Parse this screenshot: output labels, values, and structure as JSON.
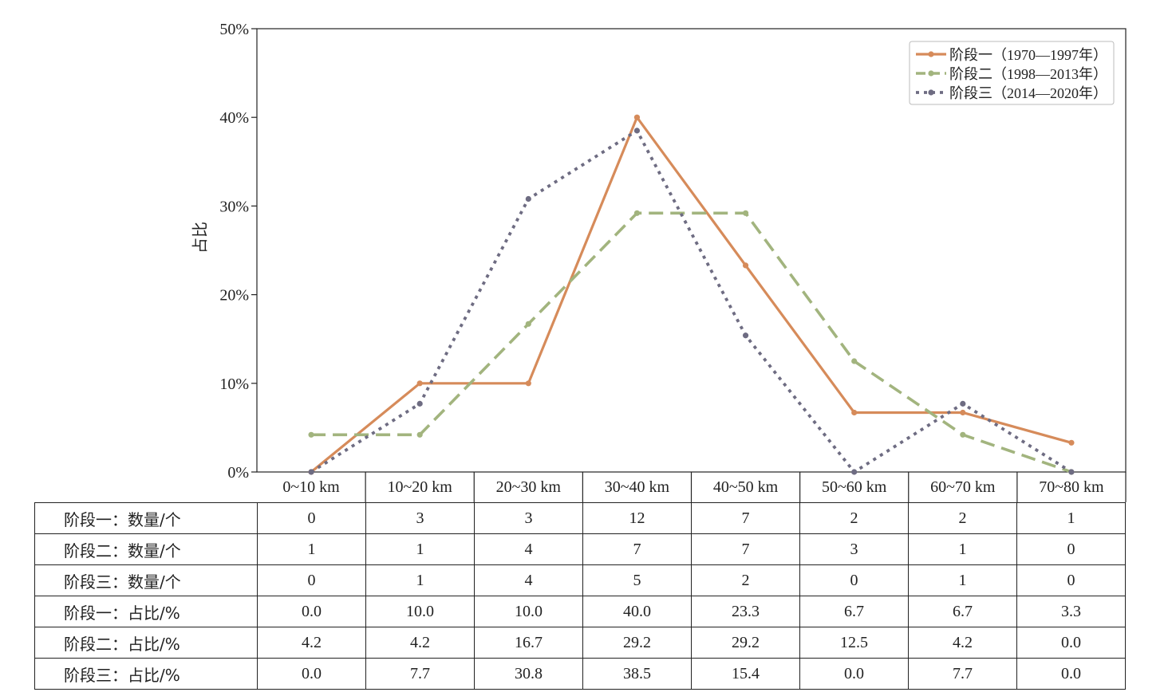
{
  "chart_data": {
    "type": "line",
    "title": "",
    "xlabel": "",
    "ylabel": "占比",
    "ylim": [
      0,
      50
    ],
    "yticks": [
      "0%",
      "10%",
      "20%",
      "30%",
      "40%",
      "50%"
    ],
    "categories": [
      "0~10 km",
      "10~20 km",
      "20~30 km",
      "30~40 km",
      "40~50 km",
      "50~60 km",
      "60~70 km",
      "70~80 km"
    ],
    "legend_position": "top-right",
    "series": [
      {
        "name": "阶段一（1970—1997年）",
        "legend_prefix": "阶段一（",
        "legend_years": "1970—1997年",
        "legend_suffix": "）",
        "color": "#D68B5A",
        "style": "solid",
        "values": [
          0.0,
          10.0,
          10.0,
          40.0,
          23.3,
          6.7,
          6.7,
          3.3
        ]
      },
      {
        "name": "阶段二（1998—2013年）",
        "legend_prefix": "阶段二（",
        "legend_years": "1998—2013年",
        "legend_suffix": "）",
        "color": "#A2B47E",
        "style": "dashed",
        "values": [
          4.2,
          4.2,
          16.7,
          29.2,
          29.2,
          12.5,
          4.2,
          0.0
        ]
      },
      {
        "name": "阶段三（2014—2020年）",
        "legend_prefix": "阶段三（",
        "legend_years": "2014—2020年",
        "legend_suffix": "）",
        "color": "#6E6C82",
        "style": "dotted",
        "values": [
          0.0,
          7.7,
          30.8,
          38.5,
          15.4,
          0.0,
          7.7,
          0.0
        ]
      }
    ]
  },
  "table": {
    "rows": [
      {
        "label": "阶段一：数量/个",
        "cells": [
          "0",
          "3",
          "3",
          "12",
          "7",
          "2",
          "2",
          "1"
        ]
      },
      {
        "label": "阶段二：数量/个",
        "cells": [
          "1",
          "1",
          "4",
          "7",
          "7",
          "3",
          "1",
          "0"
        ]
      },
      {
        "label": "阶段三：数量/个",
        "cells": [
          "0",
          "1",
          "4",
          "5",
          "2",
          "0",
          "1",
          "0"
        ]
      },
      {
        "label": "阶段一：占比/%",
        "cells": [
          "0.0",
          "10.0",
          "10.0",
          "40.0",
          "23.3",
          "6.7",
          "6.7",
          "3.3"
        ]
      },
      {
        "label": "阶段二：占比/%",
        "cells": [
          "4.2",
          "4.2",
          "16.7",
          "29.2",
          "29.2",
          "12.5",
          "4.2",
          "0.0"
        ]
      },
      {
        "label": "阶段三：占比/%",
        "cells": [
          "0.0",
          "7.7",
          "30.8",
          "38.5",
          "15.4",
          "0.0",
          "7.7",
          "0.0"
        ]
      }
    ]
  }
}
